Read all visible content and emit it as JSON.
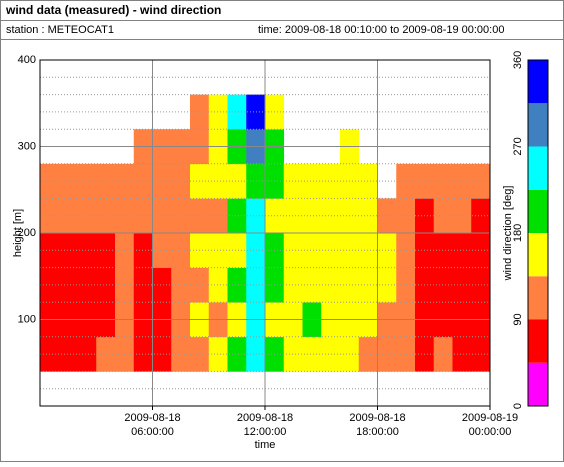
{
  "chart_data": {
    "type": "heatmap",
    "title": "wind data (measured) - wind direction",
    "station": "station : METEOCAT1",
    "time_range": "time: 2009-08-18 00:10:00 to 2009-08-19 00:00:00",
    "xlabel": "time",
    "ylabel": "height [m]",
    "bins": [
      0,
      1,
      2,
      3,
      4,
      5,
      6,
      7,
      8,
      9,
      10,
      11,
      12,
      13,
      14,
      15,
      16,
      17,
      18,
      19,
      20,
      21,
      22,
      23,
      24
    ],
    "height_bins": [
      40,
      80,
      120,
      160,
      200,
      240,
      280,
      320,
      360
    ],
    "values": [
      [
        67,
        67,
        67,
        67,
        112,
        112,
        null,
        null
      ],
      [
        67,
        67,
        67,
        67,
        112,
        112,
        null,
        null
      ],
      [
        67,
        67,
        67,
        67,
        112,
        112,
        null,
        null
      ],
      [
        112,
        67,
        67,
        67,
        112,
        112,
        null,
        null
      ],
      [
        112,
        112,
        112,
        112,
        112,
        112,
        null,
        null
      ],
      [
        67,
        67,
        67,
        67,
        112,
        112,
        112,
        null
      ],
      [
        67,
        67,
        67,
        112,
        112,
        112,
        112,
        null
      ],
      [
        112,
        112,
        112,
        112,
        112,
        112,
        112,
        null
      ],
      [
        112,
        157,
        112,
        157,
        112,
        157,
        112,
        112
      ],
      [
        157,
        112,
        157,
        157,
        112,
        157,
        157,
        157
      ],
      [
        202,
        157,
        202,
        157,
        202,
        157,
        202,
        247
      ],
      [
        247,
        247,
        247,
        247,
        247,
        202,
        292,
        337
      ],
      [
        202,
        157,
        202,
        202,
        157,
        202,
        202,
        157
      ],
      [
        157,
        157,
        157,
        157,
        157,
        157,
        null,
        null
      ],
      [
        157,
        202,
        157,
        157,
        157,
        157,
        null,
        null
      ],
      [
        157,
        157,
        157,
        157,
        157,
        157,
        null,
        null
      ],
      [
        157,
        157,
        157,
        157,
        157,
        157,
        157,
        null
      ],
      [
        112,
        157,
        157,
        157,
        157,
        157,
        null,
        null
      ],
      [
        112,
        112,
        157,
        157,
        112,
        null,
        null,
        null
      ],
      [
        112,
        112,
        112,
        112,
        112,
        112,
        null,
        null
      ],
      [
        67,
        67,
        67,
        67,
        67,
        112,
        null,
        null
      ],
      [
        112,
        67,
        67,
        67,
        112,
        112,
        null,
        null
      ],
      [
        67,
        67,
        67,
        67,
        112,
        112,
        null,
        null
      ],
      [
        67,
        67,
        67,
        67,
        67,
        112,
        null,
        null
      ]
    ],
    "xlim": [
      0,
      24
    ],
    "xticks": [
      {
        "value": 6,
        "date": "2009-08-18",
        "time": "06:00:00"
      },
      {
        "value": 12,
        "date": "2009-08-18",
        "time": "12:00:00"
      },
      {
        "value": 18,
        "date": "2009-08-18",
        "time": "18:00:00"
      },
      {
        "value": 24,
        "date": "2009-08-19",
        "time": "00:00:00"
      }
    ],
    "ylim": [
      0,
      400
    ],
    "yticks": [
      100,
      200,
      300,
      400
    ],
    "y_minor_ticks": [
      20,
      40,
      60,
      80,
      120,
      140,
      160,
      180,
      220,
      240,
      260,
      280,
      320,
      340,
      360,
      380
    ],
    "grid": true,
    "colorbar": {
      "label": "wind direction [deg]",
      "bins": [
        0,
        45,
        90,
        135,
        180,
        225,
        270,
        315,
        360
      ],
      "colors": [
        "#ff00ff",
        "#ff0000",
        "#ff8040",
        "#ffff00",
        "#00e000",
        "#00ffff",
        "#4080c0",
        "#0000ff"
      ],
      "ticks": [
        0,
        90,
        180,
        270,
        360
      ]
    }
  }
}
